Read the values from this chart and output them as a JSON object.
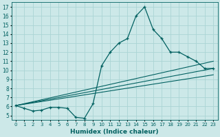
{
  "xlabel": "Humidex (Indice chaleur)",
  "ylabel": "",
  "xlim": [
    -0.5,
    23.5
  ],
  "ylim": [
    4.5,
    17.5
  ],
  "xticks": [
    0,
    1,
    2,
    3,
    4,
    5,
    6,
    7,
    8,
    9,
    10,
    11,
    12,
    13,
    14,
    15,
    16,
    17,
    18,
    19,
    20,
    21,
    22,
    23
  ],
  "yticks": [
    5,
    6,
    7,
    8,
    9,
    10,
    11,
    12,
    13,
    14,
    15,
    16,
    17
  ],
  "bg_color": "#cce8e8",
  "grid_color": "#aad4d4",
  "line_color": "#006060",
  "line1_x": [
    0,
    1,
    2,
    3,
    4,
    5,
    6,
    7,
    8,
    9,
    10,
    11,
    12,
    13,
    14,
    15,
    16,
    17,
    18,
    19,
    20,
    21,
    22,
    23
  ],
  "line1_y": [
    6.1,
    5.8,
    5.5,
    5.6,
    5.9,
    5.9,
    5.8,
    4.8,
    4.7,
    6.3,
    10.5,
    12.0,
    13.0,
    13.5,
    16.0,
    17.0,
    14.5,
    13.5,
    12.0,
    12.0,
    11.5,
    11.0,
    10.2,
    10.2
  ],
  "line2_x": [
    0,
    23
  ],
  "line2_y": [
    6.1,
    10.2
  ],
  "line3_x": [
    0,
    23
  ],
  "line3_y": [
    6.1,
    11.0
  ],
  "line4_x": [
    0,
    23
  ],
  "line4_y": [
    6.1,
    9.5
  ],
  "xtick_fontsize": 5.0,
  "ytick_fontsize": 5.5,
  "xlabel_fontsize": 6.5
}
